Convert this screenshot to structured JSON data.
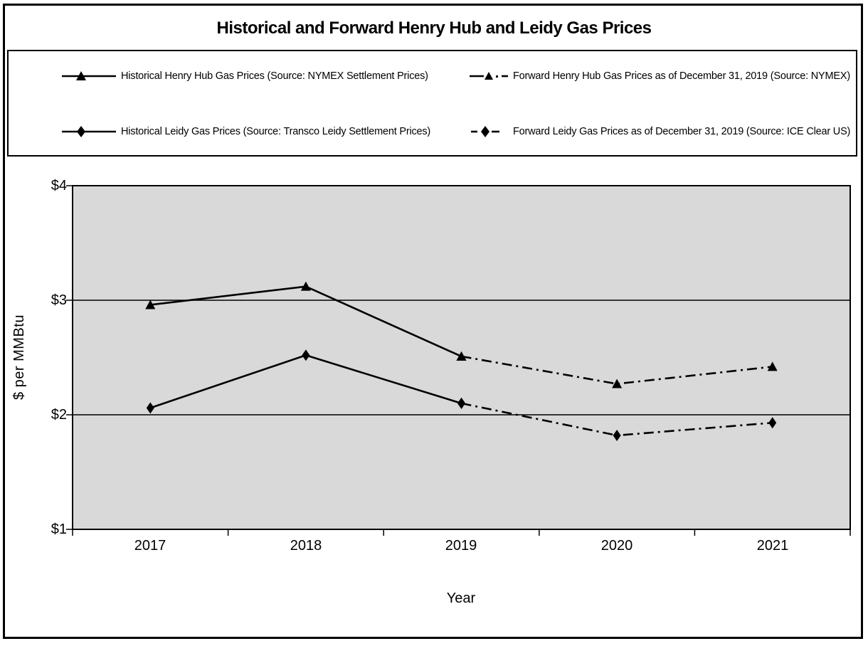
{
  "chart_data": {
    "type": "line",
    "title": "Historical and Forward Henry Hub and Leidy Gas Prices",
    "xlabel": "Year",
    "ylabel": "$ per MMBtu",
    "x_categories": [
      2017,
      2018,
      2019,
      2020,
      2021
    ],
    "x_tick_labels": [
      "2017",
      "2018",
      "2019",
      "2020",
      "2021"
    ],
    "ylim": [
      1,
      4
    ],
    "y_tick_labels": [
      "$4",
      "$3",
      "$2",
      "$1"
    ],
    "y_gridlines_at": [
      2,
      3
    ],
    "grid": true,
    "plot_bg_color": "#d9d9d9",
    "line_color": "#000000",
    "series": [
      {
        "name": "Historical Henry Hub Gas Prices (Source: NYMEX Settlement Prices)",
        "marker": "triangle",
        "line_style": "solid",
        "x": [
          2017,
          2018,
          2019
        ],
        "values": [
          2.96,
          3.12,
          2.51
        ]
      },
      {
        "name": "Forward Henry Hub Gas Prices as of December 31, 2019 (Source: NYMEX)",
        "marker": "triangle",
        "line_style": "dashdot",
        "x": [
          2019,
          2020,
          2021
        ],
        "values": [
          2.51,
          2.27,
          2.42
        ]
      },
      {
        "name": "Historical Leidy Gas Prices (Source: Transco Leidy Settlement Prices)",
        "marker": "diamond",
        "line_style": "solid",
        "x": [
          2017,
          2018,
          2019
        ],
        "values": [
          2.06,
          2.52,
          2.1
        ]
      },
      {
        "name": "Forward Leidy Gas Prices as of December 31, 2019 (Source: ICE Clear US)",
        "marker": "diamond",
        "line_style": "dashdot",
        "x": [
          2019,
          2020,
          2021
        ],
        "values": [
          2.1,
          1.82,
          1.93
        ]
      }
    ]
  }
}
